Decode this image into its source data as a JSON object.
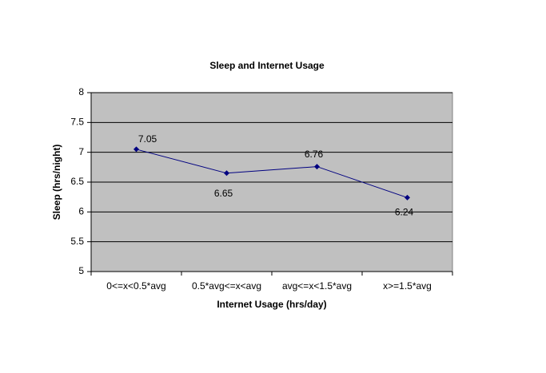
{
  "chart_data": {
    "type": "line",
    "title": "Sleep and Internet Usage",
    "x_label": "Internet Usage (hrs/day)",
    "y_label": "Sleep (hrs/night)",
    "categories": [
      "0<=x<0.5*avg",
      "0.5*avg<=x<avg",
      "avg<=x<1.5*avg",
      "x>=1.5*avg"
    ],
    "series": [
      {
        "name": "Sleep",
        "color": "#000080",
        "values": [
          7.05,
          6.65,
          6.76,
          6.24
        ]
      }
    ],
    "ylim": [
      5,
      8
    ],
    "yticks": [
      5,
      5.5,
      6,
      6.5,
      7,
      7.5,
      8
    ],
    "grid": true,
    "plot_background": "#c0c0c0"
  }
}
